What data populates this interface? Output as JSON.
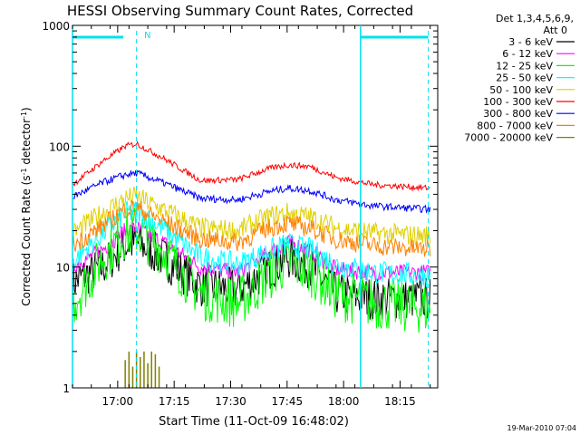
{
  "chart_data": {
    "type": "line",
    "title": "HESSI Observing Summary Count Rates, Corrected",
    "xlabel": "Start Time (11-Oct-09 16:48:02)",
    "ylabel_main": "Corrected Count Rate (s",
    "ylabel_sup1": "-1",
    "ylabel_mid": " detector",
    "ylabel_sup2": "-1",
    "ylabel_end": ")",
    "y_scale": "log",
    "ylim": [
      1,
      1000
    ],
    "x_range_minutes": [
      0,
      97
    ],
    "xticks": [
      {
        "minute": 12,
        "label": "17:00"
      },
      {
        "minute": 27,
        "label": "17:15"
      },
      {
        "minute": 42,
        "label": "17:30"
      },
      {
        "minute": 57,
        "label": "17:45"
      },
      {
        "minute": 72,
        "label": "18:00"
      },
      {
        "minute": 87,
        "label": "18:15"
      }
    ],
    "yticks": [
      {
        "value": 1,
        "label": "1"
      },
      {
        "value": 10,
        "label": "10"
      },
      {
        "value": 100,
        "label": "100"
      },
      {
        "value": 1000,
        "label": "1000"
      }
    ],
    "legend_header": [
      "Det 1,3,4,5,6,9,",
      "Att 0"
    ],
    "legend_position": "top-right",
    "series": [
      {
        "name": "3 - 6 keV",
        "color": "#000000",
        "x": [
          0,
          8,
          14,
          17,
          24,
          34,
          44,
          52,
          57,
          63,
          70,
          80,
          95
        ],
        "y": [
          7.5,
          10,
          15,
          16,
          12,
          7,
          6.5,
          9.5,
          12,
          10,
          6,
          5.5,
          5.5
        ],
        "noise": 0.18
      },
      {
        "name": "6 - 12 keV",
        "color": "#ff00ff",
        "x": [
          0,
          8,
          14,
          17,
          24,
          34,
          44,
          52,
          57,
          63,
          70,
          80,
          95
        ],
        "y": [
          10,
          14,
          20,
          21,
          16,
          10,
          9,
          13,
          16,
          14,
          9.5,
          9,
          9
        ],
        "noise": 0.07
      },
      {
        "name": "12 - 25 keV",
        "color": "#00ff00",
        "x": [
          0,
          8,
          14,
          17,
          24,
          34,
          44,
          52,
          57,
          63,
          70,
          80,
          95
        ],
        "y": [
          5,
          12,
          19,
          20,
          14,
          6,
          5,
          8.5,
          11,
          9.5,
          6,
          5,
          4.5
        ],
        "noise": 0.22
      },
      {
        "name": "25 - 50 keV",
        "color": "#00ffff",
        "x": [
          0,
          8,
          14,
          17,
          24,
          34,
          44,
          52,
          57,
          63,
          70,
          80,
          95
        ],
        "y": [
          11,
          19,
          28,
          29,
          21,
          12,
          10.5,
          13.5,
          15.5,
          14,
          10.5,
          9,
          8.5
        ],
        "noise": 0.1
      },
      {
        "name": "50 - 100 keV",
        "color": "#e0d000",
        "x": [
          0,
          8,
          14,
          17,
          24,
          34,
          44,
          52,
          57,
          63,
          70,
          80,
          95
        ],
        "y": [
          19,
          28,
          37,
          38,
          30,
          21,
          20,
          26,
          28,
          26,
          21,
          19,
          18
        ],
        "noise": 0.09
      },
      {
        "name": "100 - 300 keV",
        "color": "#ff0000",
        "x": [
          0,
          8,
          14,
          17,
          24,
          34,
          44,
          52,
          57,
          63,
          70,
          80,
          95
        ],
        "y": [
          48,
          75,
          100,
          105,
          80,
          52,
          53,
          65,
          70,
          68,
          55,
          48,
          45
        ],
        "noise": 0.025
      },
      {
        "name": "300 - 800 keV",
        "color": "#0000ff",
        "x": [
          0,
          8,
          14,
          17,
          24,
          34,
          44,
          52,
          57,
          63,
          70,
          80,
          95
        ],
        "y": [
          38,
          50,
          58,
          60,
          50,
          37,
          36,
          42,
          45,
          43,
          36,
          32,
          30
        ],
        "noise": 0.03
      },
      {
        "name": "800 - 7000 keV",
        "color": "#ff8000",
        "x": [
          0,
          8,
          14,
          17,
          24,
          34,
          44,
          52,
          57,
          63,
          70,
          80,
          95
        ],
        "y": [
          15,
          22,
          30,
          31,
          24,
          17,
          16,
          21,
          23,
          21,
          17,
          15,
          14
        ],
        "noise": 0.08
      },
      {
        "name": "7000 - 20000 keV",
        "color": "#808000",
        "x": [
          14,
          15,
          16,
          17,
          18,
          19,
          20,
          21,
          22,
          23
        ],
        "y": [
          1.7,
          2.0,
          1.5,
          2.0,
          1.8,
          2.0,
          1.6,
          2.0,
          1.9,
          1.5
        ],
        "noise": 0
      }
    ],
    "annotations": {
      "night_label": "N",
      "timestamp": "19-Mar-2010 07:04"
    },
    "colors": {
      "marker": "#00e0f0",
      "axes": "#000000",
      "background": "#ffffff"
    }
  }
}
